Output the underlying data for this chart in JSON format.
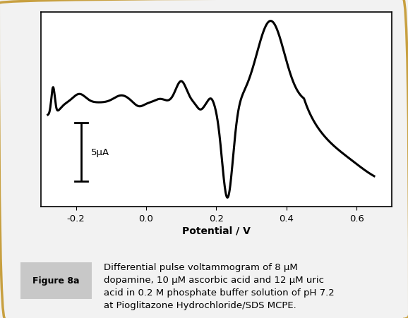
{
  "xlabel": "Potential / V",
  "xlabel_fontsize": 10,
  "xlabel_fontweight": "bold",
  "xlim": [
    -0.3,
    0.7
  ],
  "xticks": [
    -0.2,
    0.0,
    0.2,
    0.4,
    0.6
  ],
  "line_color": "#000000",
  "line_width": 2.2,
  "background_color": "#ffffff",
  "fig_background": "#f2f2f2",
  "scale_bar_label": "5μA",
  "figure_label": "Figure 8a",
  "caption": "Differential pulse voltammogram of 8 μM\ndopamine, 10 μM ascorbic acid and 12 μM uric\nacid in 0.2 M phosphate buffer solution of pH 7.2\nat Pioglitazone Hydrochloride/SDS MCPE.",
  "border_color": "#c8a040",
  "panel_bg": "#c8c8c8",
  "caption_fontsize": 9.5
}
